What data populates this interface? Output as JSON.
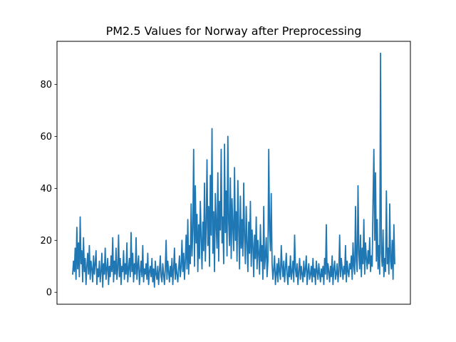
{
  "chart_data": {
    "type": "line",
    "title": "PM2.5 Values for Norway after Preprocessing",
    "xlabel": "",
    "ylabel": "",
    "ylim": [
      -4.6,
      96.6
    ],
    "yticks": [
      0,
      20,
      40,
      60,
      80
    ],
    "x_tick_labels_shown": false,
    "grid": false,
    "line_color": "#1f77b4",
    "series": [
      {
        "values": [
          7,
          12,
          8,
          17,
          5,
          25,
          9,
          19,
          6,
          29,
          11,
          16,
          4,
          21,
          8,
          13,
          3,
          10,
          15,
          7,
          18,
          5,
          12,
          9,
          4,
          14,
          7,
          11,
          16,
          3,
          9,
          6,
          12,
          4,
          8,
          15,
          2,
          11,
          7,
          17,
          5,
          9,
          13,
          3,
          10,
          6,
          14,
          8,
          21,
          4,
          12,
          7,
          17,
          5,
          9,
          22,
          6,
          13,
          3,
          10,
          8,
          16,
          5,
          11,
          7,
          19,
          4,
          9,
          13,
          6,
          23,
          8,
          15,
          4,
          11,
          7,
          21,
          5,
          10,
          14,
          3,
          8,
          12,
          6,
          18,
          4,
          9,
          7,
          11,
          5,
          15,
          3,
          8,
          10,
          6,
          13,
          4,
          9,
          2,
          12,
          7,
          5,
          10,
          3,
          8,
          14,
          6,
          4,
          11,
          7,
          3,
          9,
          20,
          5,
          12,
          8,
          4,
          10,
          6,
          13,
          3,
          9,
          17,
          5,
          11,
          7,
          4,
          9,
          14,
          6,
          10,
          20,
          8,
          15,
          5,
          12,
          22,
          9,
          28,
          7,
          18,
          11,
          34,
          14,
          24,
          55,
          10,
          41,
          19,
          30,
          8,
          26,
          13,
          35,
          21,
          9,
          27,
          16,
          42,
          12,
          25,
          51,
          18,
          33,
          10,
          45,
          22,
          63,
          15,
          31,
          8,
          38,
          26,
          17,
          46,
          12,
          35,
          24,
          55,
          19,
          29,
          11,
          57,
          23,
          39,
          14,
          60,
          27,
          18,
          44,
          13,
          36,
          25,
          16,
          48,
          20,
          31,
          12,
          43,
          24,
          9,
          37,
          17,
          28,
          14,
          42,
          21,
          11,
          33,
          19,
          8,
          27,
          15,
          35,
          10,
          24,
          18,
          6,
          22,
          13,
          29,
          9,
          20,
          15,
          7,
          26,
          12,
          18,
          5,
          33,
          9,
          14,
          21,
          6,
          12,
          55,
          24,
          16,
          38,
          11,
          5,
          9,
          14,
          3,
          7,
          11,
          4,
          13,
          8,
          5,
          18,
          10,
          6,
          12,
          4,
          9,
          15,
          7,
          3,
          10,
          6,
          14,
          5,
          8,
          12,
          4,
          22,
          9,
          6,
          11,
          3,
          8,
          13,
          5,
          10,
          7,
          4,
          12,
          6,
          9,
          14,
          3,
          8,
          11,
          5,
          7,
          10,
          4,
          13,
          6,
          9,
          3,
          12,
          8,
          5,
          11,
          7,
          4,
          9,
          6,
          10,
          3,
          13,
          7,
          26,
          5,
          11,
          8,
          4,
          10,
          6,
          14,
          3,
          9,
          12,
          5,
          7,
          11,
          4,
          8,
          22,
          6,
          13,
          9,
          5,
          10,
          7,
          18,
          4,
          12,
          8,
          6,
          11,
          9,
          14,
          5,
          19,
          10,
          7,
          33,
          12,
          8,
          41,
          15,
          9,
          22,
          6,
          17,
          11,
          28,
          7,
          19,
          13,
          9,
          16,
          11,
          21,
          8,
          14,
          10,
          35,
          55,
          20,
          46,
          12,
          28,
          9,
          18,
          7,
          92,
          15,
          10,
          24,
          6,
          13,
          8,
          39,
          11,
          17,
          7,
          34,
          12,
          9,
          20,
          5,
          26,
          11
        ]
      }
    ]
  }
}
